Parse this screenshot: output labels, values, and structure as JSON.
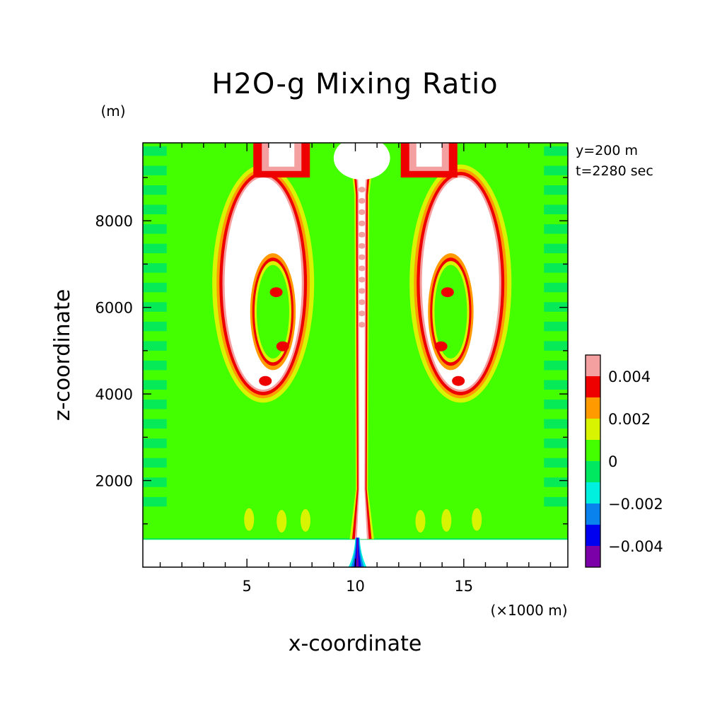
{
  "chart_data": {
    "type": "heatmap",
    "title": "H2O-g Mixing Ratio",
    "xlabel": "x-coordinate",
    "ylabel": "z-coordinate",
    "x_unit": "(×1000 m)",
    "y_unit": "(m)",
    "xlim": [
      0.2,
      19.8
    ],
    "ylim": [
      0,
      9800
    ],
    "x_ticks": [
      5,
      10,
      15
    ],
    "y_ticks": [
      2000,
      4000,
      6000,
      8000
    ],
    "x_tick_labels": [
      "5",
      "10",
      "15"
    ],
    "y_tick_labels": [
      "2000",
      "4000",
      "6000",
      "8000"
    ],
    "annotations": [
      "y=200 m",
      "t=2280 sec"
    ],
    "colorbar": {
      "levels": [
        {
          "min": -0.005,
          "max": -0.004,
          "color": "#7b00a8"
        },
        {
          "min": -0.004,
          "max": -0.003,
          "color": "#0000f0"
        },
        {
          "min": -0.003,
          "max": -0.002,
          "color": "#0a82ee"
        },
        {
          "min": -0.002,
          "max": -0.001,
          "color": "#00f0e0"
        },
        {
          "min": -0.001,
          "max": 0.0,
          "color": "#00e860"
        },
        {
          "min": 0.0,
          "max": 0.001,
          "color": "#44ff00"
        },
        {
          "min": 0.001,
          "max": 0.002,
          "color": "#d8f400"
        },
        {
          "min": 0.002,
          "max": 0.003,
          "color": "#ff9a00"
        },
        {
          "min": 0.003,
          "max": 0.004,
          "color": "#ee0000"
        },
        {
          "min": 0.004,
          "max": 0.005,
          "color": "#f4a0a0"
        }
      ],
      "tick_values": [
        0.004,
        0.002,
        0,
        -0.002,
        -0.004
      ],
      "tick_labels": [
        "0.004",
        "0.002",
        "0",
        "−0.002",
        "−0.004"
      ],
      "above_range_color": "#ffffff"
    },
    "fields": {
      "background": {
        "value": 0.0005,
        "color": "#44ff00"
      },
      "below_cloud_base": {
        "z_max": 650,
        "value": "blank",
        "color": "#ffffff"
      },
      "edge_bands": {
        "value": -0.0005,
        "color": "#00e860",
        "x_ranges": [
          [
            0.2,
            1.3
          ],
          [
            18.7,
            19.8
          ]
        ]
      },
      "central_updraft": {
        "x_center": 10.3,
        "z_range": [
          650,
          9800
        ],
        "value": ">0.005",
        "color": "#ffffff"
      },
      "left_vortex": {
        "x_range": [
          2.3,
          9.2
        ],
        "z_range": [
          3850,
          9300
        ],
        "value": ">0.005",
        "color": "#ffffff"
      },
      "right_vortex": {
        "x_range": [
          11.4,
          18.3
        ],
        "z_range": [
          3850,
          9300
        ],
        "value": ">0.005",
        "color": "#ffffff"
      },
      "surface_plume": {
        "x_center": 10.1,
        "z_range": [
          0,
          700
        ],
        "value": "<-0.002",
        "color": "#0000f0"
      }
    }
  }
}
